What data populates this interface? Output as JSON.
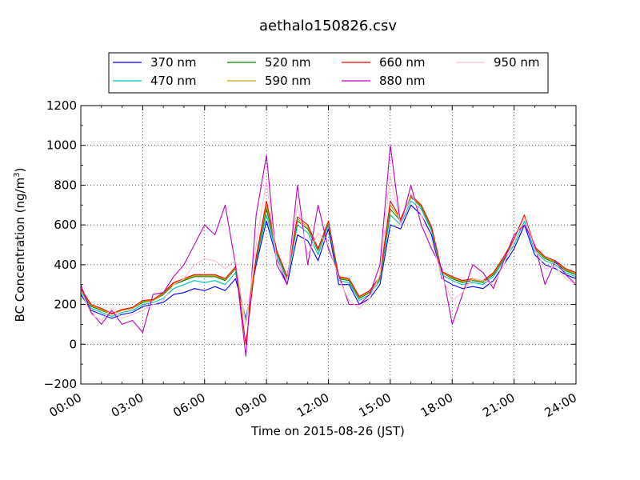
{
  "chart_data": {
    "type": "line",
    "title": "aethalo150826.csv",
    "xlabel": "Time on 2015-08-26 (JST)",
    "ylabel_main": "BC Concentration (ng/m",
    "ylabel_sup": "3",
    "ylabel_close": ")",
    "xlim": [
      "00:00",
      "24:00"
    ],
    "ylim": [
      -200,
      1200
    ],
    "x_ticks": [
      "00:00",
      "03:00",
      "06:00",
      "09:00",
      "12:00",
      "15:00",
      "18:00",
      "21:00",
      "24:00"
    ],
    "y_ticks": [
      -200,
      0,
      200,
      400,
      600,
      800,
      1000,
      1200
    ],
    "grid": true,
    "legend_position": "top-center",
    "x": [
      "00:00",
      "00:30",
      "01:00",
      "01:30",
      "02:00",
      "02:30",
      "03:00",
      "03:30",
      "04:00",
      "04:30",
      "05:00",
      "05:30",
      "06:00",
      "06:30",
      "07:00",
      "07:30",
      "08:00",
      "08:30",
      "09:00",
      "09:30",
      "10:00",
      "10:30",
      "11:00",
      "11:30",
      "12:00",
      "12:30",
      "13:00",
      "13:30",
      "14:00",
      "14:30",
      "15:00",
      "15:30",
      "16:00",
      "16:30",
      "17:00",
      "17:30",
      "18:00",
      "18:30",
      "19:00",
      "19:30",
      "20:00",
      "20:30",
      "21:00",
      "21:30",
      "22:00",
      "22:30",
      "23:00",
      "23:30",
      "24:00"
    ],
    "series": [
      {
        "name": "370 nm",
        "color": "#0000ff",
        "values": [
          250,
          170,
          150,
          130,
          150,
          160,
          190,
          200,
          210,
          250,
          260,
          280,
          270,
          290,
          270,
          330,
          130,
          400,
          620,
          430,
          300,
          550,
          520,
          420,
          580,
          300,
          300,
          200,
          230,
          300,
          600,
          580,
          700,
          650,
          550,
          330,
          300,
          280,
          290,
          280,
          320,
          400,
          480,
          600,
          450,
          400,
          380,
          350,
          330
        ]
      },
      {
        "name": "470 nm",
        "color": "#00bfbf",
        "values": [
          260,
          180,
          160,
          140,
          160,
          170,
          200,
          210,
          230,
          280,
          300,
          320,
          310,
          320,
          300,
          360,
          120,
          420,
          650,
          450,
          320,
          600,
          560,
          450,
          600,
          320,
          310,
          220,
          250,
          320,
          650,
          600,
          720,
          680,
          570,
          350,
          320,
          300,
          310,
          300,
          340,
          420,
          500,
          620,
          470,
          420,
          400,
          360,
          340
        ]
      },
      {
        "name": "520 nm",
        "color": "#008000",
        "values": [
          270,
          190,
          170,
          150,
          170,
          180,
          210,
          220,
          250,
          300,
          320,
          340,
          340,
          340,
          320,
          380,
          110,
          430,
          680,
          460,
          330,
          620,
          580,
          470,
          610,
          330,
          320,
          230,
          260,
          330,
          680,
          620,
          740,
          690,
          580,
          360,
          330,
          310,
          320,
          310,
          350,
          430,
          520,
          640,
          480,
          430,
          410,
          370,
          350
        ]
      },
      {
        "name": "590 nm",
        "color": "#c8a800",
        "values": [
          275,
          195,
          175,
          150,
          170,
          180,
          215,
          220,
          255,
          305,
          325,
          345,
          345,
          345,
          325,
          385,
          100,
          435,
          700,
          465,
          335,
          630,
          590,
          475,
          615,
          335,
          325,
          235,
          265,
          335,
          700,
          625,
          745,
          695,
          585,
          360,
          335,
          315,
          325,
          315,
          355,
          435,
          525,
          645,
          485,
          435,
          415,
          375,
          355
        ]
      },
      {
        "name": "660 nm",
        "color": "#ff0000",
        "values": [
          280,
          200,
          180,
          155,
          175,
          185,
          220,
          225,
          260,
          310,
          330,
          350,
          350,
          350,
          330,
          390,
          0,
          440,
          720,
          470,
          340,
          640,
          600,
          480,
          620,
          340,
          330,
          240,
          270,
          340,
          720,
          630,
          750,
          700,
          590,
          365,
          340,
          320,
          330,
          320,
          360,
          440,
          530,
          650,
          490,
          440,
          420,
          380,
          360
        ]
      },
      {
        "name": "880 nm",
        "color": "#bf00bf",
        "values": [
          300,
          160,
          100,
          170,
          100,
          120,
          60,
          250,
          260,
          340,
          400,
          500,
          600,
          550,
          700,
          400,
          -60,
          650,
          950,
          400,
          300,
          800,
          400,
          700,
          480,
          350,
          200,
          200,
          250,
          400,
          1000,
          600,
          800,
          600,
          480,
          380,
          100,
          250,
          400,
          360,
          280,
          420,
          550,
          600,
          500,
          300,
          420,
          350,
          300
        ]
      },
      {
        "name": "950 nm",
        "color": "#ffc0cb",
        "values": [
          270,
          150,
          120,
          180,
          130,
          150,
          170,
          200,
          220,
          300,
          330,
          400,
          430,
          420,
          380,
          420,
          100,
          500,
          820,
          420,
          320,
          700,
          450,
          560,
          500,
          330,
          220,
          180,
          230,
          350,
          850,
          600,
          760,
          650,
          520,
          340,
          220,
          260,
          330,
          320,
          300,
          400,
          520,
          640,
          480,
          380,
          390,
          330,
          300
        ]
      }
    ]
  }
}
